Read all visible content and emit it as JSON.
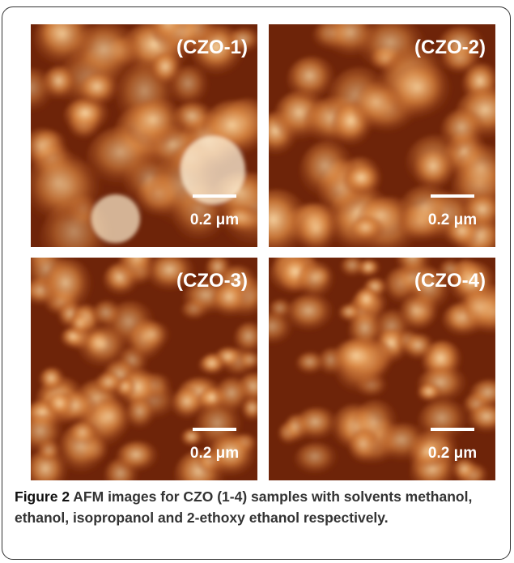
{
  "panels": [
    {
      "label": "(CZO-1)",
      "scale": "0.2 μm"
    },
    {
      "label": "(CZO-2)",
      "scale": "0.2 μm"
    },
    {
      "label": "(CZO-3)",
      "scale": "0.2 μm"
    },
    {
      "label": "(CZO-4)",
      "scale": "0.2 μm"
    }
  ],
  "caption": {
    "label": "Figure 2",
    "text": "AFM images for CZO (1-4) samples with solvents methanol, ethanol, isopropanol and 2-ethoxy ethanol respectively."
  }
}
